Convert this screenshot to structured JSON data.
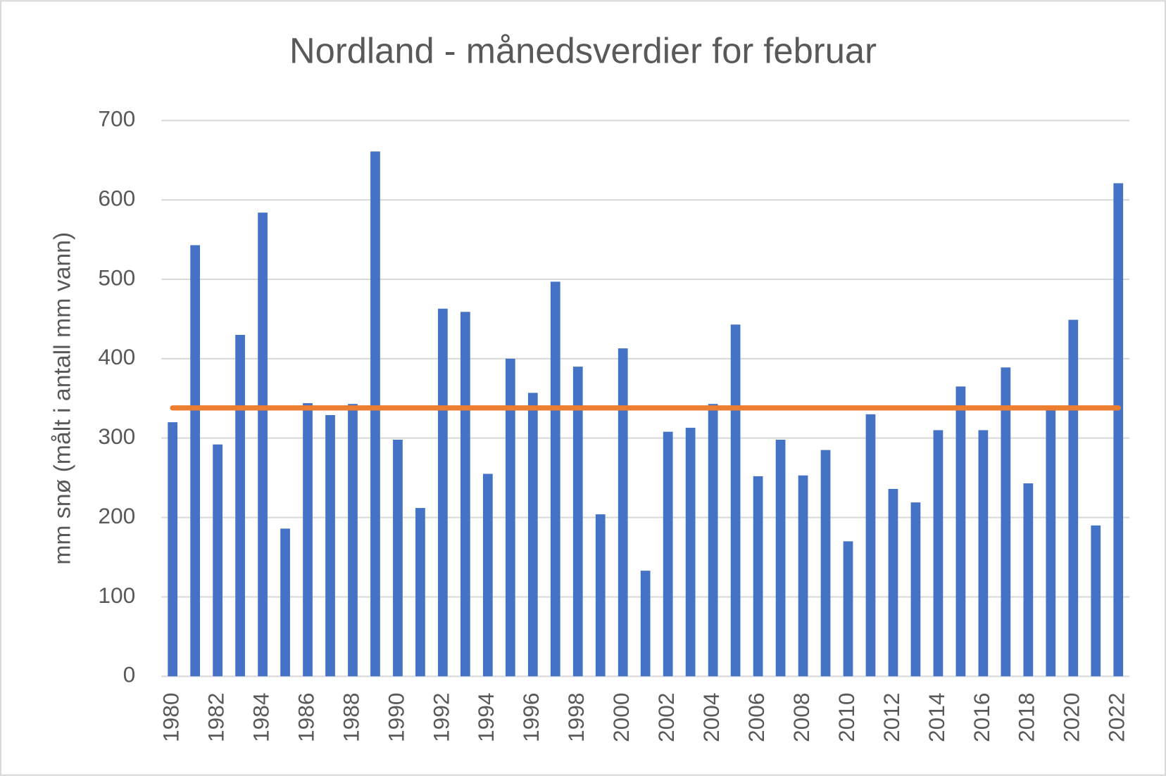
{
  "chart_data": {
    "type": "bar",
    "title": "Nordland - månedsverdier for februar",
    "y_axis_label": "mm snø (målt i antall mm vann)",
    "categories": [
      "1980",
      null,
      "1982",
      null,
      "1984",
      null,
      "1986",
      null,
      "1988",
      null,
      "1990",
      null,
      "1992",
      null,
      "1994",
      null,
      "1996",
      null,
      "1998",
      null,
      "2000",
      null,
      "2002",
      null,
      "2004",
      null,
      "2006",
      null,
      "2008",
      null,
      "2010",
      null,
      "2012",
      null,
      "2014",
      null,
      "2016",
      null,
      "2018",
      null,
      "2020",
      null,
      "2022"
    ],
    "values": [
      320,
      543,
      292,
      430,
      584,
      186,
      344,
      329,
      343,
      661,
      298,
      212,
      463,
      459,
      255,
      400,
      357,
      497,
      390,
      204,
      413,
      133,
      308,
      313,
      343,
      443,
      252,
      298,
      253,
      285,
      170,
      330,
      236,
      219,
      310,
      365,
      310,
      389,
      243,
      335,
      449,
      190,
      621
    ],
    "color": "#4472c4",
    "average_line": {
      "value": 338,
      "color": "#ed7d31"
    },
    "ylim": [
      0,
      700
    ],
    "yticks": [
      0,
      100,
      200,
      300,
      400,
      500,
      600,
      700
    ],
    "grid": true
  }
}
